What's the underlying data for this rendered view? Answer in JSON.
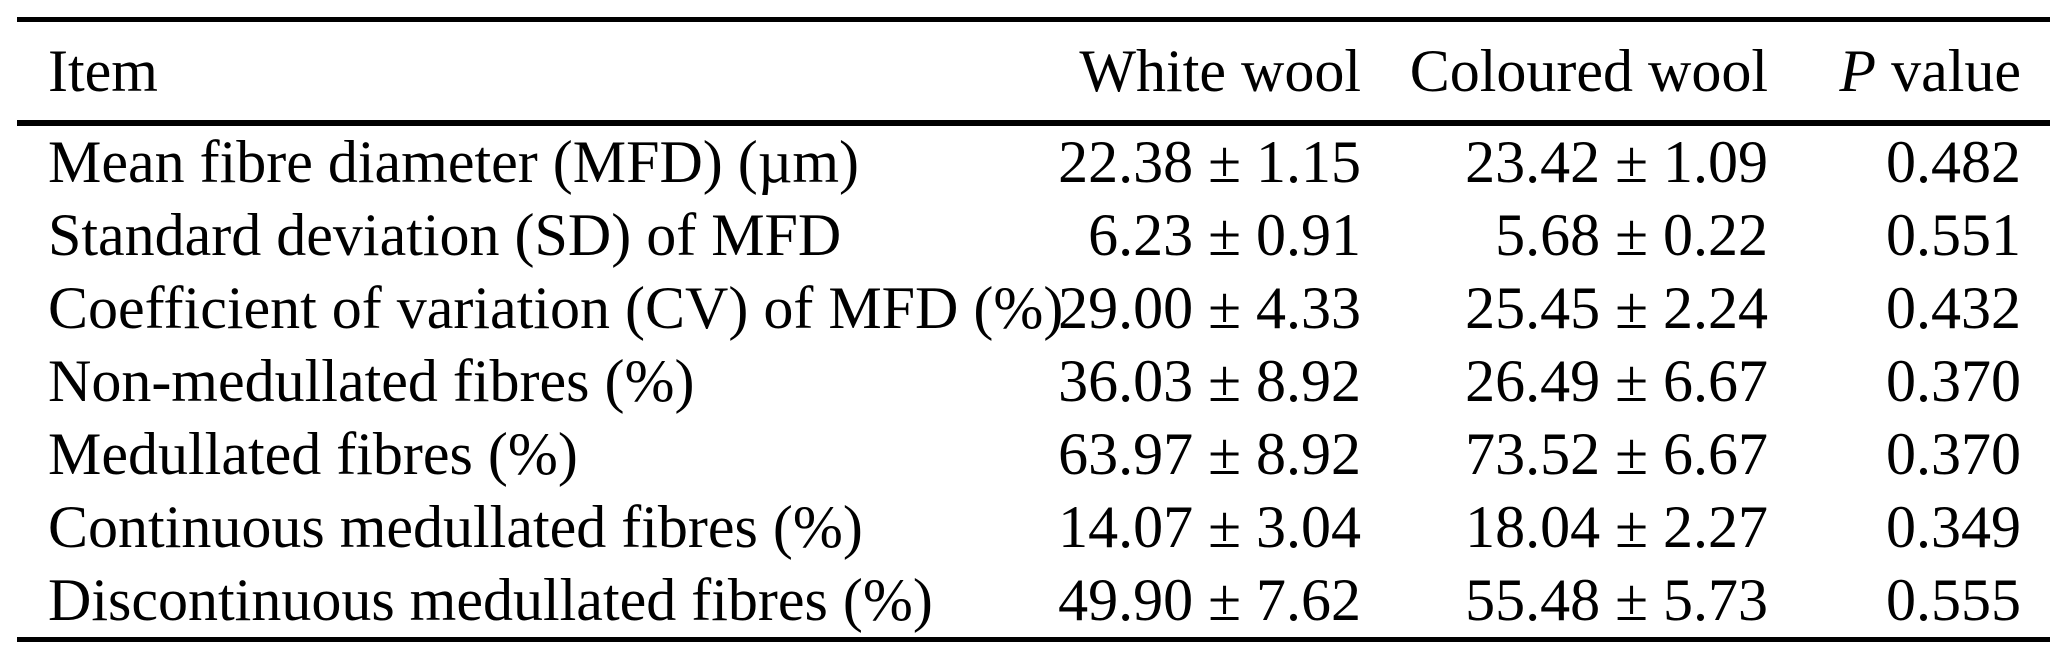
{
  "table": {
    "title_semantic": "Wool fibre characteristics comparison table",
    "colors": {
      "text": "#000000",
      "background": "#ffffff",
      "rule": "#000000"
    },
    "header": {
      "item": "Item",
      "white_wool": "White wool",
      "coloured_wool": "Coloured wool",
      "p_italic": "P",
      "p_rest": "value"
    },
    "rows": [
      {
        "item": "Mean fibre diameter (MFD) (µm)",
        "white_wool": "22.38 ± 1.15",
        "coloured_wool": "23.42 ± 1.09",
        "p_value": "0.482"
      },
      {
        "item": "Standard deviation (SD) of MFD",
        "white_wool": "6.23 ± 0.91",
        "coloured_wool": "5.68 ± 0.22",
        "p_value": "0.551"
      },
      {
        "item": "Coefficient of variation (CV) of MFD (%)",
        "white_wool": "29.00 ± 4.33",
        "coloured_wool": "25.45 ± 2.24",
        "p_value": "0.432"
      },
      {
        "item": "Non-medullated fibres (%)",
        "white_wool": "36.03 ± 8.92",
        "coloured_wool": "26.49 ± 6.67",
        "p_value": "0.370"
      },
      {
        "item": "Medullated fibres (%)",
        "white_wool": "63.97 ± 8.92",
        "coloured_wool": "73.52 ± 6.67",
        "p_value": "0.370"
      },
      {
        "item": "Continuous medullated fibres (%)",
        "white_wool": "14.07 ± 3.04",
        "coloured_wool": "18.04 ± 2.27",
        "p_value": "0.349"
      },
      {
        "item": "Discontinuous medullated fibres (%)",
        "white_wool": "49.90 ± 7.62",
        "coloured_wool": "55.48 ± 5.73",
        "p_value": "0.555"
      }
    ]
  }
}
